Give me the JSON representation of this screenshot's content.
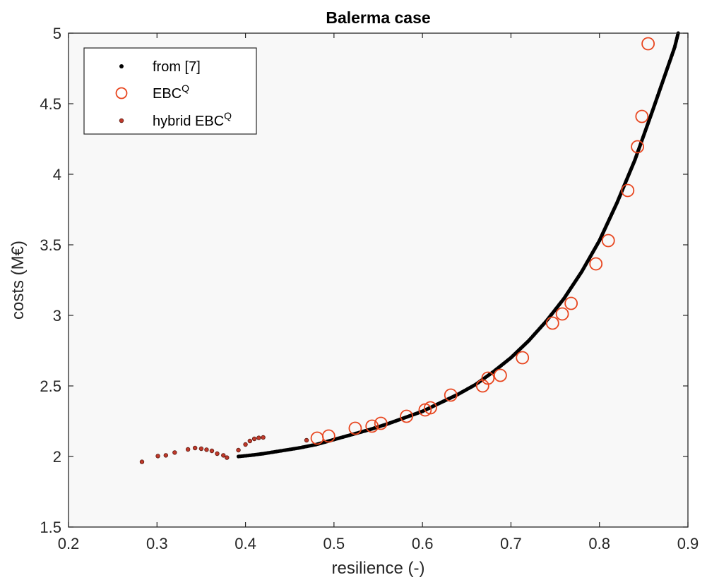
{
  "chart_data": {
    "type": "scatter",
    "title": "Balerma case",
    "xlabel": "resilience (-)",
    "ylabel": "costs (M€)",
    "xlim": [
      0.2,
      0.9
    ],
    "ylim": [
      1.5,
      5
    ],
    "xticks": [
      "0.2",
      "0.3",
      "0.4",
      "0.5",
      "0.6",
      "0.7",
      "0.8",
      "0.9"
    ],
    "yticks": [
      "1.5",
      "2",
      "2.5",
      "3",
      "3.5",
      "4",
      "4.5",
      "5"
    ],
    "legend_position": "top-left",
    "grid": false,
    "colors": {
      "from7": "#000000",
      "ebcq": "#e8451e",
      "hybrid": "#c0392b",
      "background": "#f8f8f8"
    },
    "series": [
      {
        "name": "from [7]",
        "marker": "dot",
        "points": [
          [
            0.392,
            2.0
          ],
          [
            0.405,
            2.008
          ],
          [
            0.42,
            2.02
          ],
          [
            0.44,
            2.04
          ],
          [
            0.46,
            2.06
          ],
          [
            0.48,
            2.085
          ],
          [
            0.5,
            2.12
          ],
          [
            0.52,
            2.155
          ],
          [
            0.54,
            2.19
          ],
          [
            0.56,
            2.23
          ],
          [
            0.58,
            2.275
          ],
          [
            0.6,
            2.32
          ],
          [
            0.62,
            2.38
          ],
          [
            0.64,
            2.44
          ],
          [
            0.66,
            2.51
          ],
          [
            0.68,
            2.6
          ],
          [
            0.7,
            2.7
          ],
          [
            0.72,
            2.82
          ],
          [
            0.74,
            2.96
          ],
          [
            0.76,
            3.12
          ],
          [
            0.78,
            3.31
          ],
          [
            0.8,
            3.53
          ],
          [
            0.82,
            3.8
          ],
          [
            0.84,
            4.1
          ],
          [
            0.86,
            4.45
          ],
          [
            0.875,
            4.72
          ],
          [
            0.885,
            4.9
          ],
          [
            0.889,
            5.0
          ]
        ]
      },
      {
        "name": "EBC^Q",
        "marker": "open-circle",
        "points": [
          [
            0.481,
            2.13
          ],
          [
            0.494,
            2.145
          ],
          [
            0.524,
            2.2
          ],
          [
            0.543,
            2.215
          ],
          [
            0.553,
            2.235
          ],
          [
            0.582,
            2.285
          ],
          [
            0.603,
            2.33
          ],
          [
            0.609,
            2.345
          ],
          [
            0.632,
            2.435
          ],
          [
            0.668,
            2.5
          ],
          [
            0.674,
            2.555
          ],
          [
            0.688,
            2.575
          ],
          [
            0.713,
            2.7
          ],
          [
            0.747,
            2.945
          ],
          [
            0.758,
            3.01
          ],
          [
            0.768,
            3.085
          ],
          [
            0.796,
            3.365
          ],
          [
            0.81,
            3.53
          ],
          [
            0.832,
            3.885
          ],
          [
            0.843,
            4.195
          ],
          [
            0.848,
            4.41
          ],
          [
            0.855,
            4.925
          ]
        ]
      },
      {
        "name": "hybrid EBC^Q",
        "marker": "small-dot",
        "points": [
          [
            0.283,
            1.962
          ],
          [
            0.301,
            2.003
          ],
          [
            0.31,
            2.008
          ],
          [
            0.32,
            2.028
          ],
          [
            0.335,
            2.05
          ],
          [
            0.343,
            2.06
          ],
          [
            0.35,
            2.055
          ],
          [
            0.356,
            2.048
          ],
          [
            0.362,
            2.04
          ],
          [
            0.368,
            2.02
          ],
          [
            0.375,
            2.008
          ],
          [
            0.379,
            1.992
          ],
          [
            0.392,
            2.045
          ],
          [
            0.4,
            2.085
          ],
          [
            0.405,
            2.11
          ],
          [
            0.41,
            2.125
          ],
          [
            0.415,
            2.132
          ],
          [
            0.42,
            2.135
          ],
          [
            0.469,
            2.115
          ]
        ]
      }
    ]
  },
  "legend": {
    "items": [
      {
        "label": "from [7]"
      },
      {
        "label": "EBC",
        "sup": "Q"
      },
      {
        "label": "hybrid EBC",
        "sup": "Q"
      }
    ]
  }
}
